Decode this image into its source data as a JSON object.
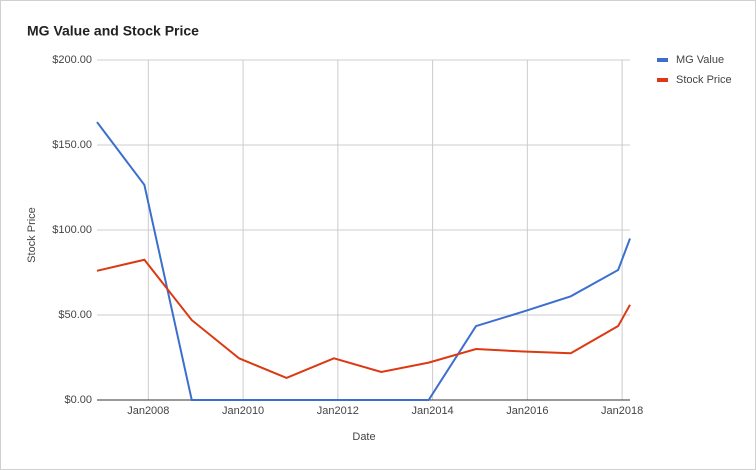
{
  "chart_data": {
    "type": "line",
    "title": "MG Value and Stock Price",
    "x_label": "Date",
    "y_label": "Stock Price",
    "x": [
      "2006-12",
      "2007-12",
      "2008-12",
      "2009-12",
      "2010-12",
      "2011-12",
      "2012-12",
      "2013-12",
      "2014-12",
      "2015-12",
      "2016-12",
      "2017-12",
      "2018-03"
    ],
    "series": [
      {
        "name": "MG Value",
        "color": "#3c6fcd",
        "values": [
          163.5,
          126.5,
          0,
          0,
          0,
          0,
          0,
          0,
          43.5,
          52,
          61,
          76.5,
          95
        ]
      },
      {
        "name": "Stock Price",
        "color": "#dc3912",
        "values": [
          76,
          82.5,
          47,
          24.5,
          13,
          24.5,
          16.5,
          22,
          30,
          28.5,
          27.5,
          43.5,
          56
        ]
      }
    ],
    "xlim": [
      "2006-12",
      "2018-03"
    ],
    "xticks": [
      {
        "value": "2008-01",
        "label": "Jan2008"
      },
      {
        "value": "2010-01",
        "label": "Jan2010"
      },
      {
        "value": "2012-01",
        "label": "Jan2012"
      },
      {
        "value": "2014-01",
        "label": "Jan2014"
      },
      {
        "value": "2016-01",
        "label": "Jan2016"
      },
      {
        "value": "2018-01",
        "label": "Jan2018"
      }
    ],
    "ylim": [
      0,
      200
    ],
    "yticks": [
      {
        "value": 0,
        "label": "$0.00"
      },
      {
        "value": 50,
        "label": "$50.00"
      },
      {
        "value": 100,
        "label": "$100.00"
      },
      {
        "value": 150,
        "label": "$150.00"
      },
      {
        "value": 200,
        "label": "$200.00"
      }
    ],
    "grid": true,
    "legend": "right"
  }
}
